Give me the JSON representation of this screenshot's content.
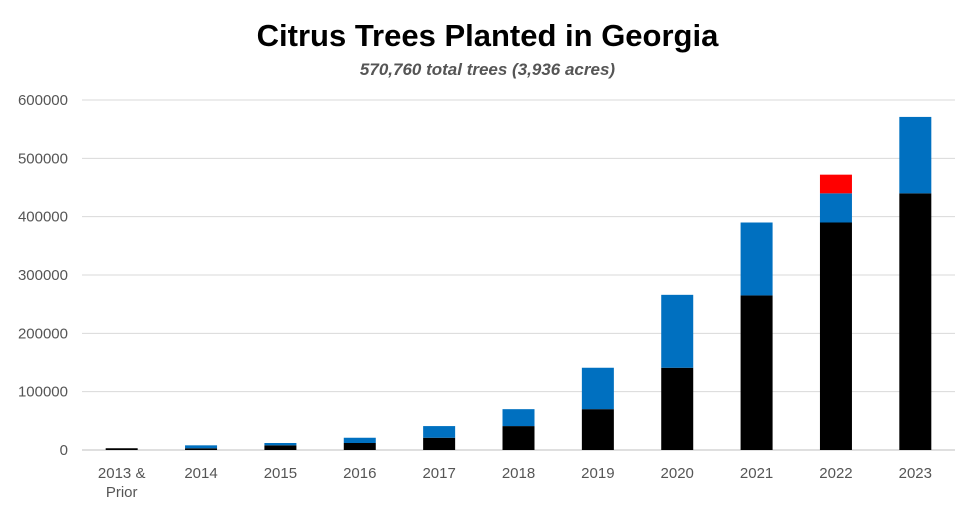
{
  "chart_data": {
    "type": "bar",
    "stacked": true,
    "title": "Citrus Trees Planted in Georgia",
    "subtitle": "570,760 total trees (3,936 acres)",
    "xlabel": "",
    "ylabel": "",
    "categories": [
      "2013 & Prior",
      "2014",
      "2015",
      "2016",
      "2017",
      "2018",
      "2019",
      "2020",
      "2021",
      "2022",
      "2023"
    ],
    "ylim": [
      0,
      600000
    ],
    "yticks": [
      0,
      100000,
      200000,
      300000,
      400000,
      500000,
      600000
    ],
    "grid": true,
    "legend": "none",
    "series": [
      {
        "values": [
          3000,
          3000,
          8000,
          12000,
          21000,
          41000,
          70000,
          141000,
          265000,
          390000,
          440000
        ],
        "color": "#000000"
      },
      {
        "values": [
          0,
          5000,
          4000,
          9000,
          20000,
          29000,
          71000,
          125000,
          125000,
          50000,
          131000
        ],
        "color": "#0070C0"
      },
      {
        "values": [
          0,
          0,
          0,
          0,
          0,
          0,
          0,
          0,
          0,
          32000,
          0
        ],
        "color": "#FF0000"
      }
    ]
  }
}
